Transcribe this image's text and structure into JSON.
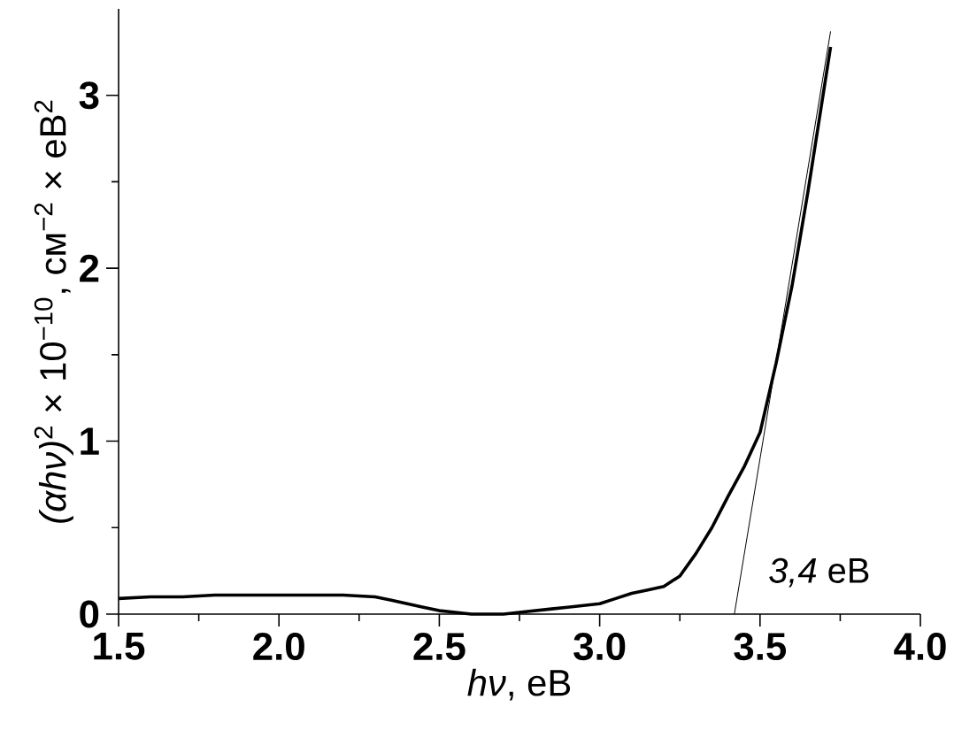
{
  "chart_data": {
    "type": "line",
    "xlabel": "*hν*, eB",
    "ylabel": "*(αhν)*$^{2}$ × 10$^{−10}$, см$^{−2}$ × eB$^{2}$",
    "x": [
      1.5,
      1.6,
      1.7,
      1.8,
      1.9,
      2.0,
      2.1,
      2.2,
      2.3,
      2.35,
      2.4,
      2.45,
      2.5,
      2.55,
      2.6,
      2.65,
      2.7,
      2.75,
      2.8,
      2.85,
      2.9,
      2.95,
      3.0,
      3.05,
      3.1,
      3.15,
      3.2,
      3.25,
      3.3,
      3.35,
      3.4,
      3.45,
      3.5,
      3.55,
      3.6,
      3.65,
      3.72
    ],
    "series": [
      {
        "color": "#000000",
        "values": [
          0.09,
          0.1,
          0.1,
          0.11,
          0.11,
          0.11,
          0.11,
          0.11,
          0.1,
          0.08,
          0.06,
          0.04,
          0.02,
          0.01,
          0.0,
          0.0,
          0.0,
          0.01,
          0.02,
          0.03,
          0.04,
          0.05,
          0.06,
          0.09,
          0.12,
          0.14,
          0.16,
          0.22,
          0.35,
          0.5,
          0.68,
          0.85,
          1.05,
          1.45,
          1.9,
          2.45,
          3.28
        ]
      },
      {
        "type": "line",
        "color": "#000000",
        "x": [
          3.42,
          3.72
        ],
        "values": [
          0,
          3.37
        ]
      }
    ],
    "annotations": [
      {
        "text": "*3,4* eB",
        "x": 3.42,
        "y": 0
      }
    ],
    "xlim": [
      1.5,
      4.0
    ],
    "ylim": [
      0,
      3.5
    ],
    "xticks": [
      1.5,
      {
        "value": 2.0,
        "label": "2.0"
      },
      2.5,
      {
        "value": 3.0,
        "label": "3.0"
      },
      3.5,
      {
        "value": 4.0,
        "label": "4.0"
      }
    ],
    "yticks": [
      0,
      1,
      2,
      3
    ],
    "grid": false
  }
}
